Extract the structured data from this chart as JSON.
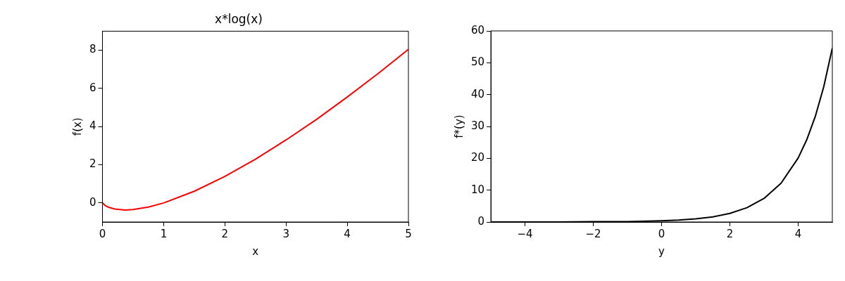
{
  "chart_data": [
    {
      "type": "line",
      "title": "x*log(x)",
      "xlabel": "x",
      "ylabel": "f(x)",
      "grid": false,
      "x": [
        0,
        0.05,
        0.1,
        0.2,
        0.37,
        0.5,
        0.75,
        1,
        1.5,
        2,
        2.5,
        3,
        3.5,
        4,
        4.5,
        5
      ],
      "series": [
        {
          "color": "#ff0000",
          "values": [
            0,
            -0.15,
            -0.23,
            -0.32,
            -0.37,
            -0.35,
            -0.22,
            0,
            0.61,
            1.39,
            2.29,
            3.3,
            4.38,
            5.55,
            6.77,
            8.05
          ]
        }
      ],
      "xlim": [
        0,
        5
      ],
      "ylim": [
        -1,
        9
      ],
      "xticks": [
        0,
        1,
        2,
        3,
        4,
        5
      ],
      "yticks": [
        0,
        2,
        4,
        6,
        8
      ]
    },
    {
      "type": "line",
      "xlabel": "y",
      "ylabel": "f*(y)",
      "grid": false,
      "x": [
        -5,
        -4,
        -3,
        -2,
        -1,
        0,
        0.5,
        1,
        1.5,
        2,
        2.5,
        3,
        3.5,
        4,
        4.25,
        4.5,
        4.75,
        5
      ],
      "series": [
        {
          "color": "#000000",
          "values": [
            0,
            0,
            0,
            0.1,
            0.1,
            0.4,
            0.6,
            1,
            1.6,
            2.7,
            4.5,
            7.4,
            12.2,
            20.1,
            25.8,
            33.1,
            42.5,
            54.6
          ]
        }
      ],
      "xlim": [
        -5,
        5
      ],
      "ylim": [
        0,
        60
      ],
      "xticks": [
        -4,
        -2,
        0,
        2,
        4
      ],
      "yticks": [
        0,
        10,
        20,
        30,
        40,
        50,
        60
      ]
    }
  ]
}
